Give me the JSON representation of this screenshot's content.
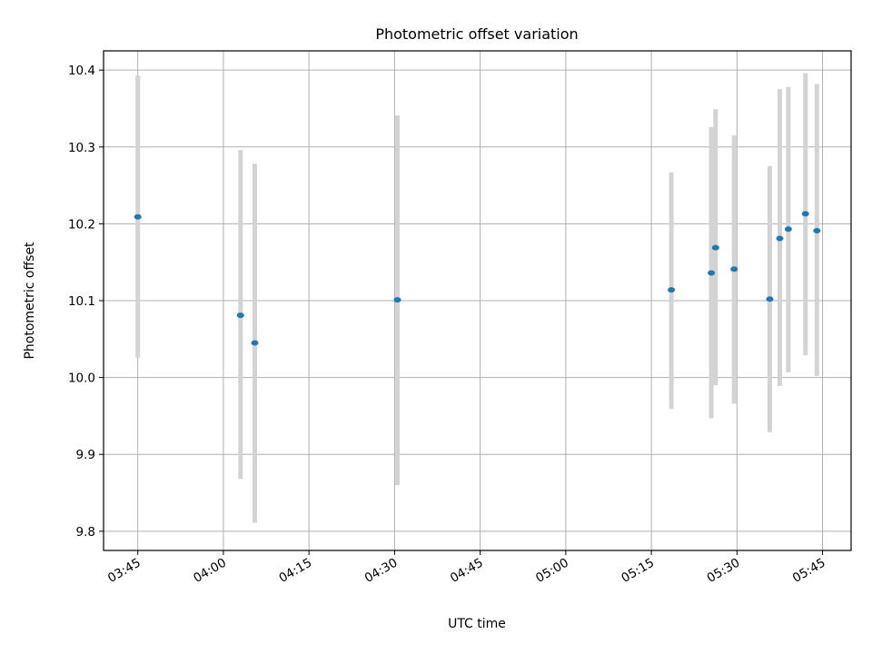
{
  "chart_data": {
    "type": "scatter",
    "title": "Photometric offset variation",
    "xlabel": "UTC time",
    "ylabel": "Photometric offset",
    "xlim": [
      "03:39",
      "05:50"
    ],
    "ylim": [
      9.775,
      10.425
    ],
    "grid": true,
    "x_ticks": [
      "03:45",
      "04:00",
      "04:15",
      "04:30",
      "04:45",
      "05:00",
      "05:15",
      "05:30",
      "05:45"
    ],
    "y_ticks": [
      "9.8",
      "9.9",
      "10.0",
      "10.1",
      "10.2",
      "10.3",
      "10.4"
    ],
    "colors": {
      "point": "#1f77b4",
      "errorbar": "#d3d3d3",
      "grid": "#b0b0b0"
    },
    "points": [
      {
        "time": "03:45:00",
        "y": 10.209,
        "ylow": 10.026,
        "yhigh": 10.393
      },
      {
        "time": "04:03:00",
        "y": 10.081,
        "ylow": 9.868,
        "yhigh": 10.296
      },
      {
        "time": "04:05:30",
        "y": 10.045,
        "ylow": 9.811,
        "yhigh": 10.278
      },
      {
        "time": "04:30:30",
        "y": 10.101,
        "ylow": 9.86,
        "yhigh": 10.341
      },
      {
        "time": "05:18:30",
        "y": 10.114,
        "ylow": 9.959,
        "yhigh": 10.267
      },
      {
        "time": "05:25:30",
        "y": 10.136,
        "ylow": 9.947,
        "yhigh": 10.326
      },
      {
        "time": "05:26:15",
        "y": 10.169,
        "ylow": 9.99,
        "yhigh": 10.349
      },
      {
        "time": "05:29:30",
        "y": 10.141,
        "ylow": 9.966,
        "yhigh": 10.315
      },
      {
        "time": "05:35:45",
        "y": 10.102,
        "ylow": 9.929,
        "yhigh": 10.275
      },
      {
        "time": "05:37:30",
        "y": 10.181,
        "ylow": 9.989,
        "yhigh": 10.375
      },
      {
        "time": "05:39:00",
        "y": 10.193,
        "ylow": 10.007,
        "yhigh": 10.378
      },
      {
        "time": "05:42:00",
        "y": 10.213,
        "ylow": 10.029,
        "yhigh": 10.396
      },
      {
        "time": "05:44:00",
        "y": 10.191,
        "ylow": 10.002,
        "yhigh": 10.382
      }
    ]
  }
}
